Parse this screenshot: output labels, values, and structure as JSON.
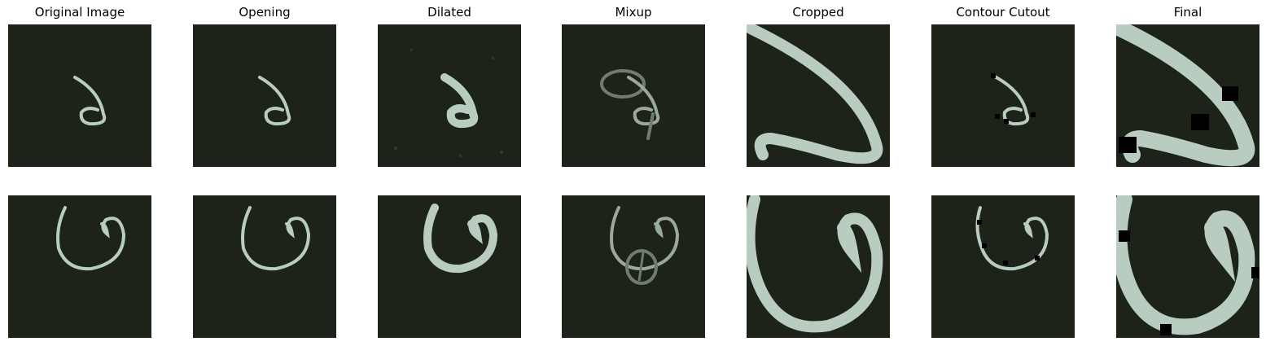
{
  "columns": [
    {
      "title": "Original Image"
    },
    {
      "title": "Opening"
    },
    {
      "title": "Dilated"
    },
    {
      "title": "Mixup"
    },
    {
      "title": "Cropped"
    },
    {
      "title": "Contour Cutout"
    },
    {
      "title": "Final"
    }
  ],
  "colors": {
    "background": "#1e2319",
    "stroke": "#b8cdbf",
    "cutout": "#000000"
  }
}
